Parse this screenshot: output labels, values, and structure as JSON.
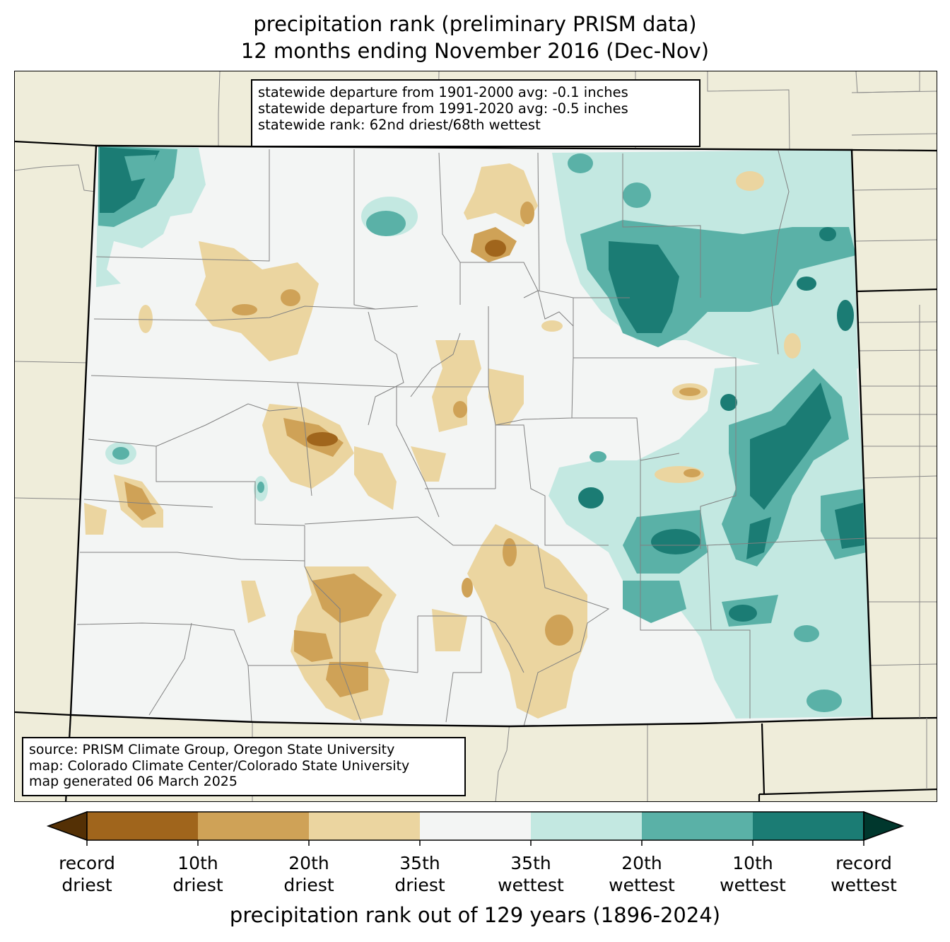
{
  "title": {
    "line1": "precipitation rank (preliminary PRISM data)",
    "line2": "12 months ending November 2016 (Dec-Nov)"
  },
  "stats": {
    "line1": "statewide departure from 1901-2000 avg: -0.1 inches",
    "line2": "statewide departure from 1991-2020 avg: -0.5 inches",
    "line3": "statewide rank: 62nd driest/68th wettest"
  },
  "source": {
    "line1": "source: PRISM Climate Group, Oregon State University",
    "line2": "map: Colorado Climate Center/Colorado State University",
    "line3": "map generated 06 March 2025"
  },
  "colorbar": {
    "label": "precipitation rank out of 129 years (1896-2024)",
    "colors": {
      "record_driest_extend": "#543005",
      "record_to_10th_driest": "#a0651c",
      "10th_to_20th_driest": "#cfa257",
      "20th_to_35th_driest": "#ebd5a0",
      "35th_driest_to_35th_wettest": "#f3f5f4",
      "35th_to_20th_wettest": "#c3e8e1",
      "20th_to_10th_wettest": "#5ab1a7",
      "10th_wettest_to_record": "#1b7c74",
      "record_wettest_extend": "#00372d"
    },
    "ticks": [
      {
        "line1": "record",
        "line2": "driest"
      },
      {
        "line1": "10th",
        "line2": "driest"
      },
      {
        "line1": "20th",
        "line2": "driest"
      },
      {
        "line1": "35th",
        "line2": "driest"
      },
      {
        "line1": "35th",
        "line2": "wettest"
      },
      {
        "line1": "20th",
        "line2": "wettest"
      },
      {
        "line1": "10th",
        "line2": "wettest"
      },
      {
        "line1": "record",
        "line2": "wettest"
      }
    ]
  },
  "map": {
    "background_color": "#efedda",
    "state_fill": "#f3f5f4",
    "county_line_color": "#808080",
    "state_border_color": "#000000"
  }
}
